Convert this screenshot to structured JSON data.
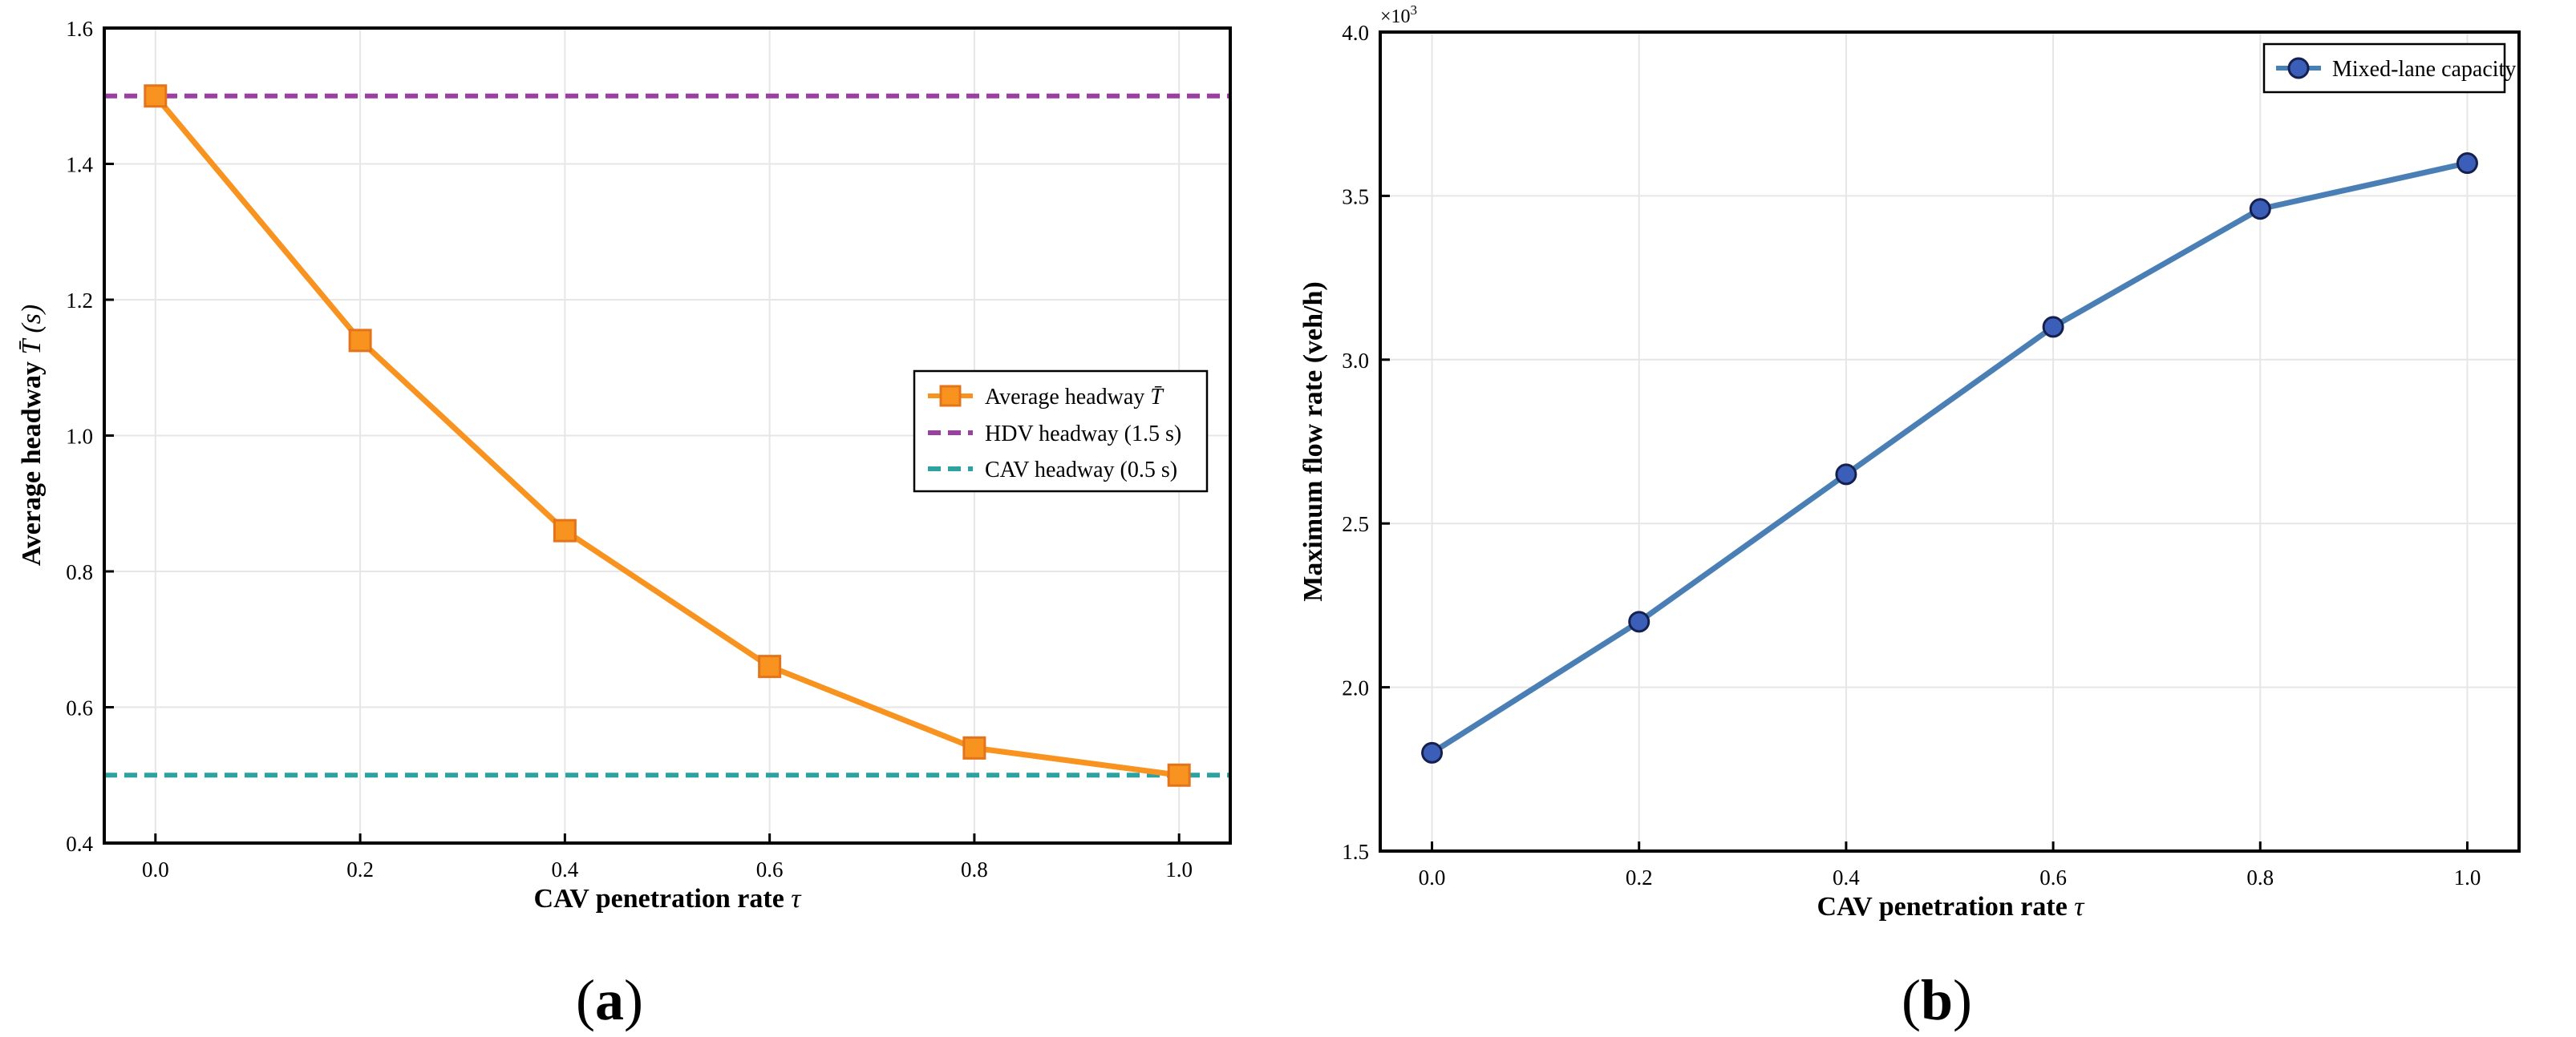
{
  "chart_data": [
    {
      "type": "line",
      "panel_label": "a",
      "title": "",
      "xlabel": "CAV penetration rate",
      "xlabel_symbol": "τ",
      "ylabel": "Average headway",
      "ylabel_symbol": "T̄ (s)",
      "xlim": [
        -0.05,
        1.05
      ],
      "ylim": [
        0.4,
        1.6
      ],
      "xticks": [
        0.0,
        0.2,
        0.4,
        0.6,
        0.8,
        1.0
      ],
      "xtick_labels": [
        "0.0",
        "0.2",
        "0.4",
        "0.6",
        "0.8",
        "1.0"
      ],
      "yticks": [
        0.4,
        0.6,
        0.8,
        1.0,
        1.2,
        1.4,
        1.6
      ],
      "ytick_labels": [
        "0.4",
        "0.6",
        "0.8",
        "1.0",
        "1.2",
        "1.4",
        "1.6"
      ],
      "grid": true,
      "legend_position": "center-right",
      "series": [
        {
          "name": "Average headway",
          "name_symbol": "T̄",
          "marker": "square",
          "color": "#f7931e",
          "marker_edge": "#e4741b",
          "x": [
            0.0,
            0.2,
            0.4,
            0.6,
            0.8,
            1.0
          ],
          "values": [
            1.5,
            1.14,
            0.86,
            0.66,
            0.54,
            0.5
          ]
        },
        {
          "name": "HDV headway (1.5 s)",
          "style": "dashed",
          "color": "#9b3fa3",
          "y": 1.5
        },
        {
          "name": "CAV headway (0.5 s)",
          "style": "dashed",
          "color": "#2ca3a0",
          "y": 0.5
        }
      ]
    },
    {
      "type": "line",
      "panel_label": "b",
      "title": "",
      "xlabel": "CAV penetration rate",
      "xlabel_symbol": "τ",
      "ylabel": "Maximum flow rate (veh/h)",
      "y_multiplier": "×10",
      "y_multiplier_exp": "3",
      "xlim": [
        -0.05,
        1.05
      ],
      "ylim": [
        1.5,
        4.0
      ],
      "xticks": [
        0.0,
        0.2,
        0.4,
        0.6,
        0.8,
        1.0
      ],
      "xtick_labels": [
        "0.0",
        "0.2",
        "0.4",
        "0.6",
        "0.8",
        "1.0"
      ],
      "yticks": [
        1.5,
        2.0,
        2.5,
        3.0,
        3.5,
        4.0
      ],
      "ytick_labels": [
        "1.5",
        "2.0",
        "2.5",
        "3.0",
        "3.5",
        "4.0"
      ],
      "grid": true,
      "legend_position": "top-right",
      "series": [
        {
          "name": "Mixed-lane capacity",
          "marker": "circle",
          "color": "#4a7fb5",
          "marker_fill": "#3b5fb8",
          "marker_edge": "#15204f",
          "x": [
            0.0,
            0.2,
            0.4,
            0.6,
            0.8,
            1.0
          ],
          "values": [
            1.8,
            2.2,
            2.65,
            3.1,
            3.46,
            3.6
          ]
        }
      ]
    }
  ]
}
